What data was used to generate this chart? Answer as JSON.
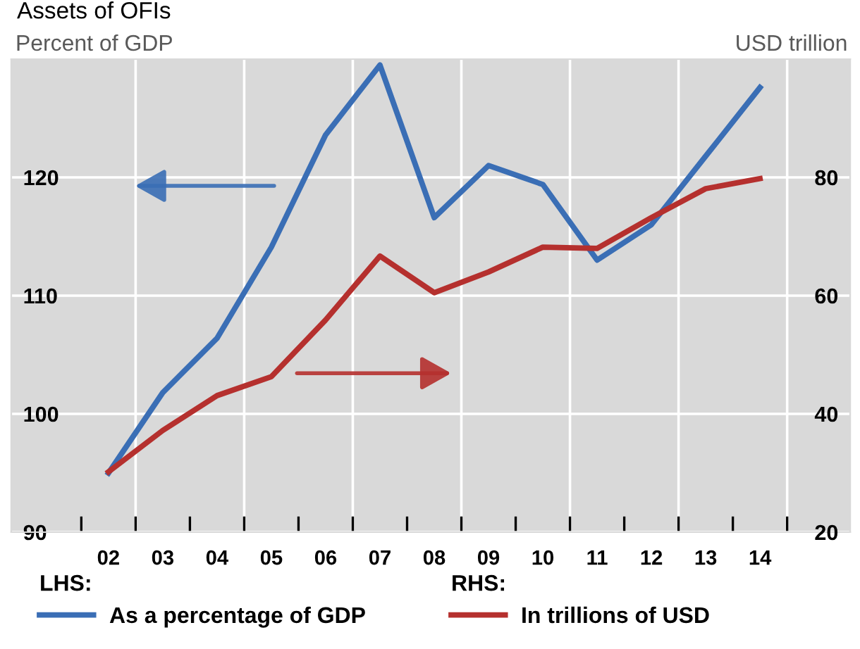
{
  "chart_data": {
    "type": "line",
    "title": "Assets of OFIs",
    "ylabel": "Percent of GDP",
    "y2label": "USD trillion",
    "categories": [
      "02",
      "03",
      "04",
      "05",
      "06",
      "07",
      "08",
      "09",
      "10",
      "11",
      "12",
      "13",
      "14"
    ],
    "series": [
      {
        "name": "As a percentage of GDP",
        "color": "#3a6eb5",
        "values": [
          95,
          101.8,
          106.4,
          114.1,
          123.6,
          129.5,
          116.6,
          121,
          119.4,
          113,
          116,
          121.8,
          127.6
        ]
      },
      {
        "name": "In trillions of USD",
        "color": "#b5302e",
        "axis": "y2",
        "values": [
          30.2,
          37.2,
          43.1,
          46.3,
          55.9,
          66.7,
          60.5,
          64,
          68.2,
          68,
          73.2,
          78.1,
          79.8
        ]
      }
    ],
    "ylim": [
      90,
      130
    ],
    "yticks": [
      90,
      100,
      110,
      120
    ],
    "y2lim": [
      20,
      100
    ],
    "y2ticks": [
      20,
      40,
      60,
      80
    ],
    "grid": true,
    "legend": "bottom",
    "line_style": "solid",
    "annotations": [
      "LHS:",
      "RHS:"
    ]
  }
}
